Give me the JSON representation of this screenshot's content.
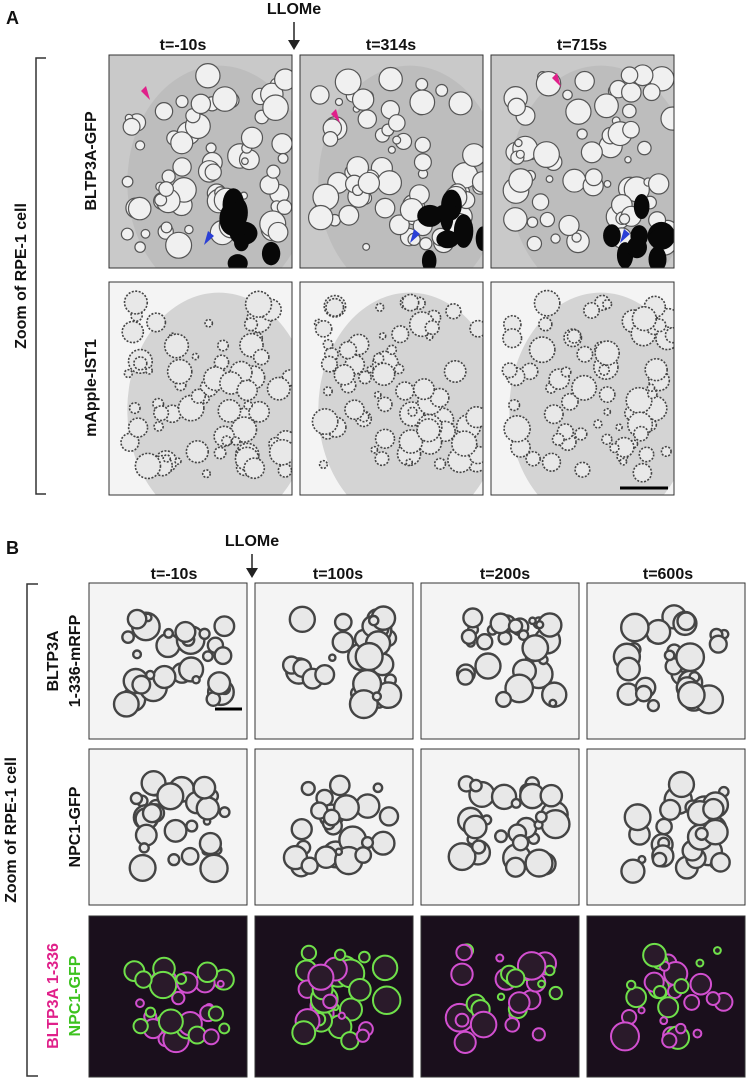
{
  "panel_a": {
    "label": "A",
    "treatment": "LLOMe",
    "side_label": "Zoom of RPE-1 cell",
    "timepoints": [
      "t=-10s",
      "t=314s",
      "t=715s"
    ],
    "rows": [
      "BLTP3A-GFP",
      "mApple-IST1"
    ]
  },
  "panel_b": {
    "label": "B",
    "treatment": "LLOMe",
    "side_label": "Zoom of RPE-1 cell",
    "timepoints": [
      "t=-10s",
      "t=100s",
      "t=200s",
      "t=600s"
    ],
    "rows": [
      [
        "BLTP3A",
        "1-336-mRFP"
      ],
      [
        "NPC1-GFP"
      ],
      [
        "BLTP3A 1-336",
        "NPC1-GFP"
      ]
    ]
  }
}
